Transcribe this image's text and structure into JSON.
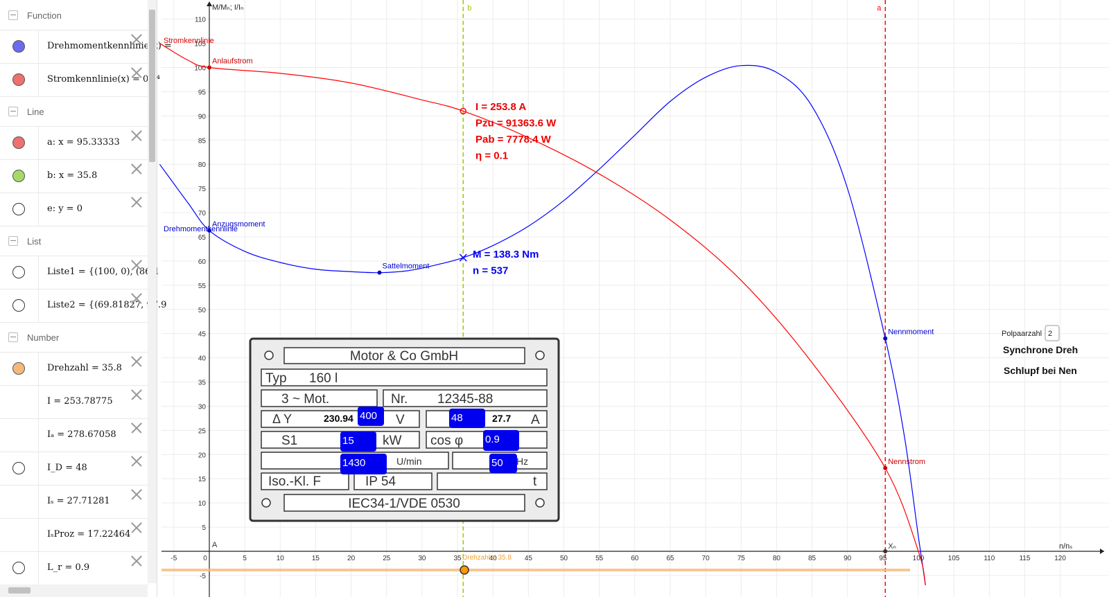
{
  "algebra": {
    "sections": [
      {
        "label": "Function",
        "items": [
          {
            "text": "Drehmomentkennlinie(x) = ",
            "color": "#6b6bf0"
          },
          {
            "text": "Stromkennlinie(x) = 0 x⁴",
            "color": "#f07070"
          }
        ]
      },
      {
        "label": "Line",
        "items": [
          {
            "text": "a: x = 95.33333",
            "color": "#f07070"
          },
          {
            "text": "b: x = 35.8",
            "color": "#a6d96a"
          },
          {
            "text": "e: y = 0",
            "color": ""
          }
        ]
      },
      {
        "label": "List",
        "items": [
          {
            "text": "Liste1 = {(100, 0), (86.1",
            "color": ""
          },
          {
            "text": "Liste2 = {(69.81827, 97.9",
            "color": ""
          }
        ]
      },
      {
        "label": "Number",
        "items": [
          {
            "text": "Drehzahl = 35.8",
            "color": "#f6b97c"
          },
          {
            "text": "I = 253.78775",
            "color": "none"
          },
          {
            "text": "Iₐ = 278.67058",
            "color": "none"
          },
          {
            "text": "I_D = 48",
            "color": ""
          },
          {
            "text": "Iₛ = 27.71281",
            "color": "none"
          },
          {
            "text": "IₛProz = 17.22464",
            "color": "none"
          },
          {
            "text": "L_r = 0.9",
            "color": ""
          }
        ]
      }
    ]
  },
  "chart_data": {
    "type": "line",
    "xlabel": "n/nₛ",
    "ylabel": "M/Mₙ; I/Iₙ",
    "xlim": [
      -7,
      122
    ],
    "ylim": [
      -7,
      112
    ],
    "x_ticks": [
      -5,
      5,
      10,
      15,
      20,
      25,
      30,
      35,
      40,
      45,
      50,
      55,
      60,
      65,
      70,
      75,
      80,
      85,
      90,
      95,
      100,
      105,
      110,
      115,
      120
    ],
    "y_ticks": [
      -5,
      5,
      10,
      15,
      20,
      25,
      30,
      35,
      40,
      45,
      50,
      55,
      60,
      65,
      70,
      75,
      80,
      85,
      90,
      95,
      100,
      105,
      110
    ],
    "series": [
      {
        "name": "Drehmomentkennlinie",
        "color": "#0000ff",
        "points": [
          [
            -7,
            80
          ],
          [
            -3,
            72
          ],
          [
            0,
            66.3
          ],
          [
            5,
            62
          ],
          [
            10,
            59.7
          ],
          [
            15,
            58.3
          ],
          [
            20,
            57.8
          ],
          [
            24,
            57.6
          ],
          [
            28,
            58
          ],
          [
            32,
            59.2
          ],
          [
            35.8,
            60.7
          ],
          [
            40,
            63.2
          ],
          [
            45,
            67.2
          ],
          [
            50,
            72.5
          ],
          [
            55,
            79
          ],
          [
            60,
            86
          ],
          [
            65,
            93
          ],
          [
            70,
            98
          ],
          [
            75,
            100.4
          ],
          [
            80,
            99
          ],
          [
            85,
            92
          ],
          [
            90,
            75
          ],
          [
            95.33,
            44
          ],
          [
            98,
            24
          ],
          [
            100,
            3
          ],
          [
            101,
            -7
          ]
        ]
      },
      {
        "name": "Stromkennlinie",
        "color": "#ff0000",
        "points": [
          [
            -7,
            105
          ],
          [
            -3,
            101.5
          ],
          [
            0,
            100
          ],
          [
            10,
            98.8
          ],
          [
            20,
            96.8
          ],
          [
            30,
            93.3
          ],
          [
            35.8,
            91
          ],
          [
            45,
            85.5
          ],
          [
            55,
            78
          ],
          [
            65,
            68.5
          ],
          [
            75,
            56
          ],
          [
            85,
            39
          ],
          [
            95.33,
            17.2
          ],
          [
            100,
            0
          ],
          [
            101,
            -7
          ]
        ]
      }
    ],
    "lines": [
      {
        "name": "a",
        "x": 95.33333,
        "color": "#ff0000",
        "label": "a"
      },
      {
        "name": "b",
        "x": 35.8,
        "color": "#99cc00",
        "label": "b"
      }
    ],
    "points": [
      {
        "name": "Anlaufstrom",
        "x": 0,
        "y": 100,
        "color": "#cc0000"
      },
      {
        "name": "Anzugsmoment",
        "x": 0,
        "y": 66.3,
        "color": "#0000cc"
      },
      {
        "name": "Sattelmoment",
        "x": 24,
        "y": 57.6,
        "color": "#0000cc"
      },
      {
        "name": "Nennmoment",
        "x": 95.33,
        "y": 44,
        "color": "#0000cc"
      },
      {
        "name": "Nennstrom",
        "x": 95.33,
        "y": 17.2,
        "color": "#cc0000"
      }
    ],
    "curve_labels": {
      "strom": "Stromkennlinie",
      "drehmoment": "Drehmomentkennlinie"
    },
    "origin_label": "A",
    "xn_label": "Xₙ",
    "red_readout": [
      "I = 253.8 A",
      "Pzu = 91363.6 W",
      "Pab = 7778.4 W",
      "η = 0.1"
    ],
    "blue_readout": [
      "M = 138.3 Nm",
      "n = 537"
    ],
    "slider": {
      "label": "Drehzahl = 35.8",
      "value": 35.8,
      "color": "#f6b97c"
    },
    "polpaarzahl": {
      "label": "Polpaarzahl",
      "value": "2"
    },
    "synchron_text": "Synchrone Dreh",
    "schlupf_text": "Schlupf bei Nen"
  },
  "plate": {
    "company": "Motor & Co GmbH",
    "typ_label": "Typ",
    "typ_value": "160 l",
    "phase": "3 ~ Mot.",
    "nr_label": "Nr.",
    "nr_value": "12345-88",
    "delta_star": "Δ Y",
    "voltage_calc": "230.94",
    "voltage_input": "400",
    "voltage_unit": "V",
    "current_input": "48",
    "current_calc": "27.7",
    "current_unit": "A",
    "duty": "S1",
    "power_input": "15",
    "power_unit": "kW",
    "cos_label": "cos φ",
    "cos_input": "0.9",
    "rpm_input": "1430",
    "rpm_unit": "U/min",
    "hz_input": "50",
    "hz_unit": "Hz",
    "iso": "Iso.-Kl. F",
    "ip": "IP 54",
    "t": "t",
    "norm": "IEC34-1/VDE 0530"
  }
}
